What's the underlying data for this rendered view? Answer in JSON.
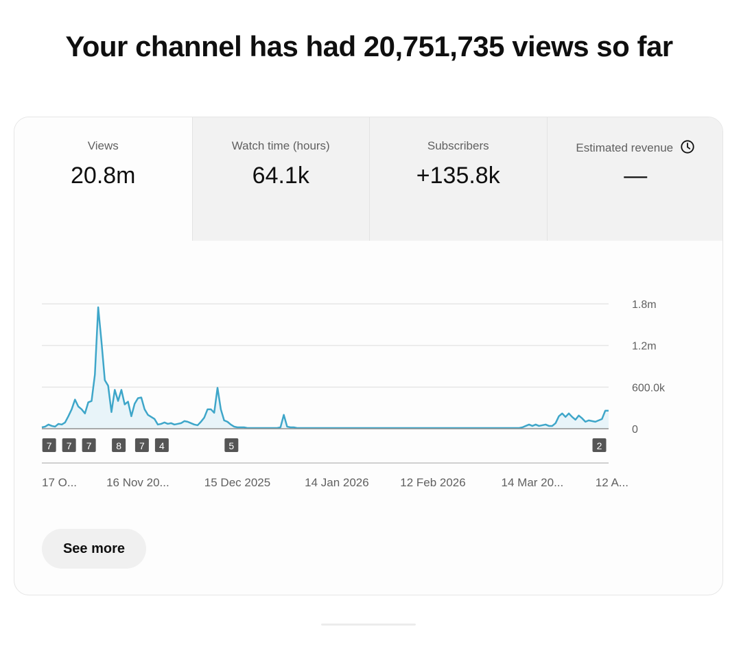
{
  "header": {
    "title": "Your channel has had 20,751,735 views so far"
  },
  "metrics": [
    {
      "label": "Views",
      "value": "20.8m",
      "active": true
    },
    {
      "label": "Watch time (hours)",
      "value": "64.1k",
      "active": false
    },
    {
      "label": "Subscribers",
      "value": "+135.8k",
      "active": false
    },
    {
      "label": "Estimated revenue",
      "value": "—",
      "active": false,
      "icon": "clock-icon"
    }
  ],
  "colors": {
    "line": "#3ea6c9",
    "fill": "#e8f4f9",
    "grid": "#e6e6e6",
    "marker_bg": "#555555"
  },
  "chart_data": {
    "type": "area",
    "ylabel_ticks": [
      "1.8m",
      "1.2m",
      "600.0k",
      "0"
    ],
    "y_ticks": [
      1800000,
      1200000,
      600000,
      0
    ],
    "ylim": [
      0,
      1800000
    ],
    "x_tick_labels": [
      "17 O...",
      "16 Nov 20...",
      "15 Dec 2025",
      "14 Jan 2026",
      "12 Feb 2026",
      "14 Mar 20...",
      "12 A..."
    ],
    "x_tick_index": [
      0,
      30,
      59,
      89,
      118,
      148,
      177
    ],
    "grid": true,
    "legend": "none",
    "series": [
      {
        "values": [
          20000,
          30000,
          60000,
          40000,
          30000,
          70000,
          60000,
          90000,
          180000,
          280000,
          420000,
          320000,
          280000,
          220000,
          380000,
          400000,
          780000,
          1750000,
          1250000,
          700000,
          620000,
          240000,
          560000,
          400000,
          560000,
          350000,
          390000,
          180000,
          360000,
          440000,
          450000,
          280000,
          200000,
          170000,
          140000,
          60000,
          70000,
          90000,
          70000,
          80000,
          60000,
          70000,
          80000,
          110000,
          100000,
          80000,
          60000,
          50000,
          100000,
          160000,
          280000,
          280000,
          230000,
          590000,
          280000,
          120000,
          100000,
          60000,
          30000,
          20000,
          20000,
          20000,
          10000,
          10000,
          10000,
          10000,
          10000,
          10000,
          10000,
          10000,
          10000,
          10000,
          20000,
          200000,
          30000,
          20000,
          20000,
          10000,
          10000,
          10000,
          10000,
          10000,
          10000,
          10000,
          10000,
          10000,
          10000,
          10000,
          10000,
          10000,
          10000,
          10000,
          10000,
          10000,
          10000,
          10000,
          10000,
          10000,
          10000,
          10000,
          10000,
          10000,
          10000,
          10000,
          10000,
          10000,
          10000,
          10000,
          10000,
          10000,
          10000,
          10000,
          10000,
          10000,
          10000,
          10000,
          10000,
          10000,
          10000,
          10000,
          10000,
          10000,
          10000,
          10000,
          10000,
          10000,
          10000,
          10000,
          10000,
          10000,
          10000,
          10000,
          10000,
          10000,
          10000,
          10000,
          10000,
          10000,
          10000,
          10000,
          10000,
          10000,
          10000,
          10000,
          10000,
          20000,
          40000,
          60000,
          40000,
          60000,
          40000,
          50000,
          60000,
          40000,
          40000,
          80000,
          180000,
          220000,
          170000,
          220000,
          170000,
          130000,
          190000,
          150000,
          100000,
          120000,
          110000,
          100000,
          120000,
          140000,
          260000,
          260000
        ]
      }
    ],
    "markers": [
      {
        "label": "7",
        "index": 2
      },
      {
        "label": "7",
        "index": 8
      },
      {
        "label": "7",
        "index": 14
      },
      {
        "label": "8",
        "index": 23
      },
      {
        "label": "7",
        "index": 30
      },
      {
        "label": "4",
        "index": 36
      },
      {
        "label": "5",
        "index": 57
      },
      {
        "label": "2",
        "index": 168
      }
    ]
  },
  "actions": {
    "see_more_label": "See more"
  }
}
